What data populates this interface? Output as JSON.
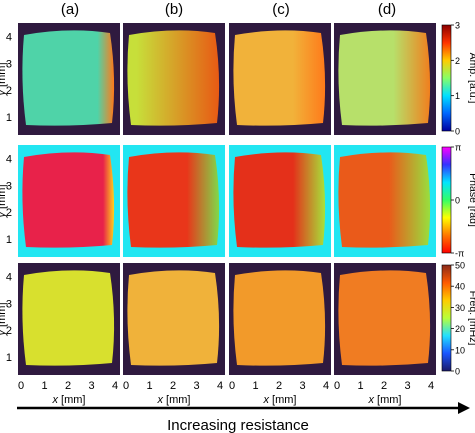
{
  "columns": [
    {
      "label": "(a)"
    },
    {
      "label": "(b)"
    },
    {
      "label": "(c)"
    },
    {
      "label": "(d)"
    }
  ],
  "rows": [
    {
      "name": "amplitude",
      "colorbar": {
        "label": "Amp. [a.u.]",
        "ticks": [
          "3",
          "2",
          "1",
          "0"
        ],
        "stops": [
          "#8b0000",
          "#ff3300",
          "#ffcc00",
          "#88ff66",
          "#00e0ff",
          "#0066ff",
          "#0000a0"
        ]
      },
      "panels": [
        {
          "bg": "#2f1a3f",
          "fill": "#4fd3a8",
          "hot": "#ff7a1a",
          "hot_frac": 0.18
        },
        {
          "bg": "#2f1a3f",
          "fill": "#c7df3a",
          "hot": "#e85a14",
          "hot_frac": 0.9
        },
        {
          "bg": "#2f1a3f",
          "fill": "#f1b23a",
          "hot": "#ff7a1a",
          "hot_frac": 0.35
        },
        {
          "bg": "#2f1a3f",
          "fill": "#b7e06a",
          "hot": "#f07f1e",
          "hot_frac": 0.4
        }
      ]
    },
    {
      "name": "phase",
      "colorbar": {
        "label": "Phase [rad]",
        "ticks": [
          "π",
          "0",
          "-π"
        ],
        "stops": [
          "#ff00ff",
          "#3333ff",
          "#00e5ff",
          "#33ff66",
          "#ffff00",
          "#ff7700",
          "#ff0000"
        ]
      },
      "panels": [
        {
          "bg": "#22e6f2",
          "fill": "#e8224a",
          "hot": "#ffd21a",
          "hot_frac": 0.12
        },
        {
          "bg": "#22e6f2",
          "fill": "#e9361a",
          "hot": "#7fd94a",
          "hot_frac": 0.35
        },
        {
          "bg": "#22e6f2",
          "fill": "#e4301a",
          "hot": "#a6e23a",
          "hot_frac": 0.35
        },
        {
          "bg": "#22e6f2",
          "fill": "#ea5a1a",
          "hot": "#98df3e",
          "hot_frac": 0.45
        }
      ]
    },
    {
      "name": "frequency",
      "colorbar": {
        "label": "Freq. [mHz]",
        "ticks": [
          "50",
          "40",
          "30",
          "20",
          "10",
          "0"
        ],
        "stops": [
          "#8b2a1a",
          "#ff5a00",
          "#ffcc00",
          "#b9ff3a",
          "#22e0ff",
          "#1a55ff",
          "#1a1a6a"
        ]
      },
      "panels": [
        {
          "bg": "#2f1a3f",
          "fill": "#d8e02e",
          "hot": "#d8e02e",
          "hot_frac": 0.0
        },
        {
          "bg": "#2f1a3f",
          "fill": "#f0b23a",
          "hot": "#f0b23a",
          "hot_frac": 0.0
        },
        {
          "bg": "#2f1a3f",
          "fill": "#f29a2a",
          "hot": "#f29a2a",
          "hot_frac": 0.0
        },
        {
          "bg": "#2f1a3f",
          "fill": "#f07c22",
          "hot": "#f07c22",
          "hot_frac": 0.0
        }
      ]
    }
  ],
  "y_axis": {
    "label_var": "y",
    "label_unit": "[mm]",
    "ticks": [
      "4",
      "3",
      "2",
      "1"
    ]
  },
  "x_axis": {
    "label_var": "x",
    "label_unit": "[mm]",
    "ticks": [
      "0",
      "1",
      "2",
      "3",
      "4"
    ]
  },
  "footer": {
    "arrow_label": "Increasing resistance"
  }
}
